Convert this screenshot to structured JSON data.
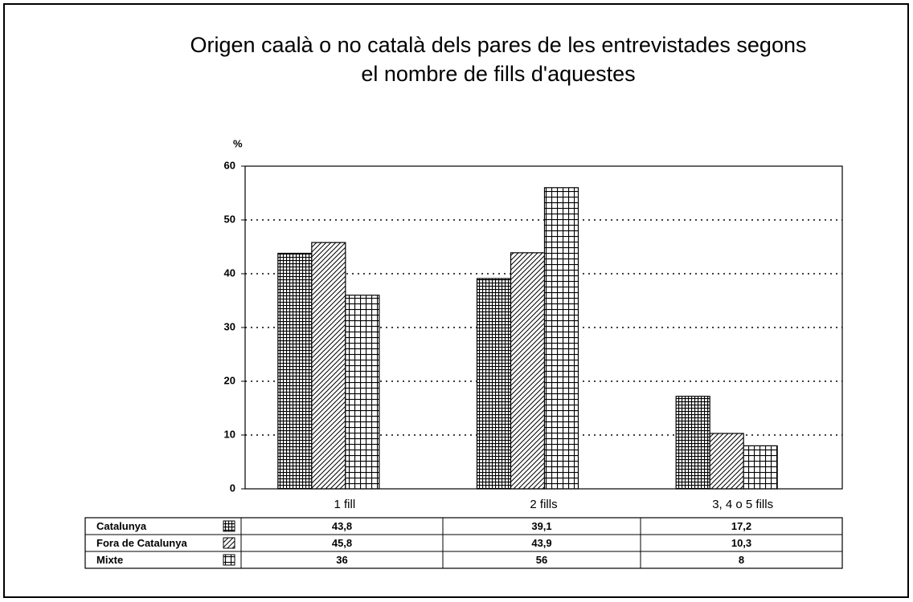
{
  "chart_data": {
    "type": "bar",
    "title": [
      "Origen caalà o no català dels pares de les entrevistades segons",
      "el nombre de fills d'aquestes"
    ],
    "y_label": "%",
    "categories": [
      "1 fill",
      "2 fills",
      "3, 4 o 5 fills"
    ],
    "series": [
      {
        "name": "Catalunya",
        "color": "#000000",
        "pattern": "dense-grid",
        "values": [
          43.8,
          39.1,
          17.2
        ],
        "value_labels": [
          "43,8",
          "39,1",
          "17,2"
        ]
      },
      {
        "name": "Fora de Catalunya",
        "color": "#000000",
        "pattern": "hatch",
        "values": [
          45.8,
          43.9,
          10.3
        ],
        "value_labels": [
          "45,8",
          "43,9",
          "10,3"
        ]
      },
      {
        "name": "Mixte",
        "color": "#000000",
        "pattern": "grid",
        "values": [
          36,
          56,
          8
        ]
      }
    ],
    "ylim": [
      0,
      60
    ],
    "yticks": [
      0,
      10,
      20,
      30,
      40,
      50,
      60
    ],
    "grid": true
  }
}
